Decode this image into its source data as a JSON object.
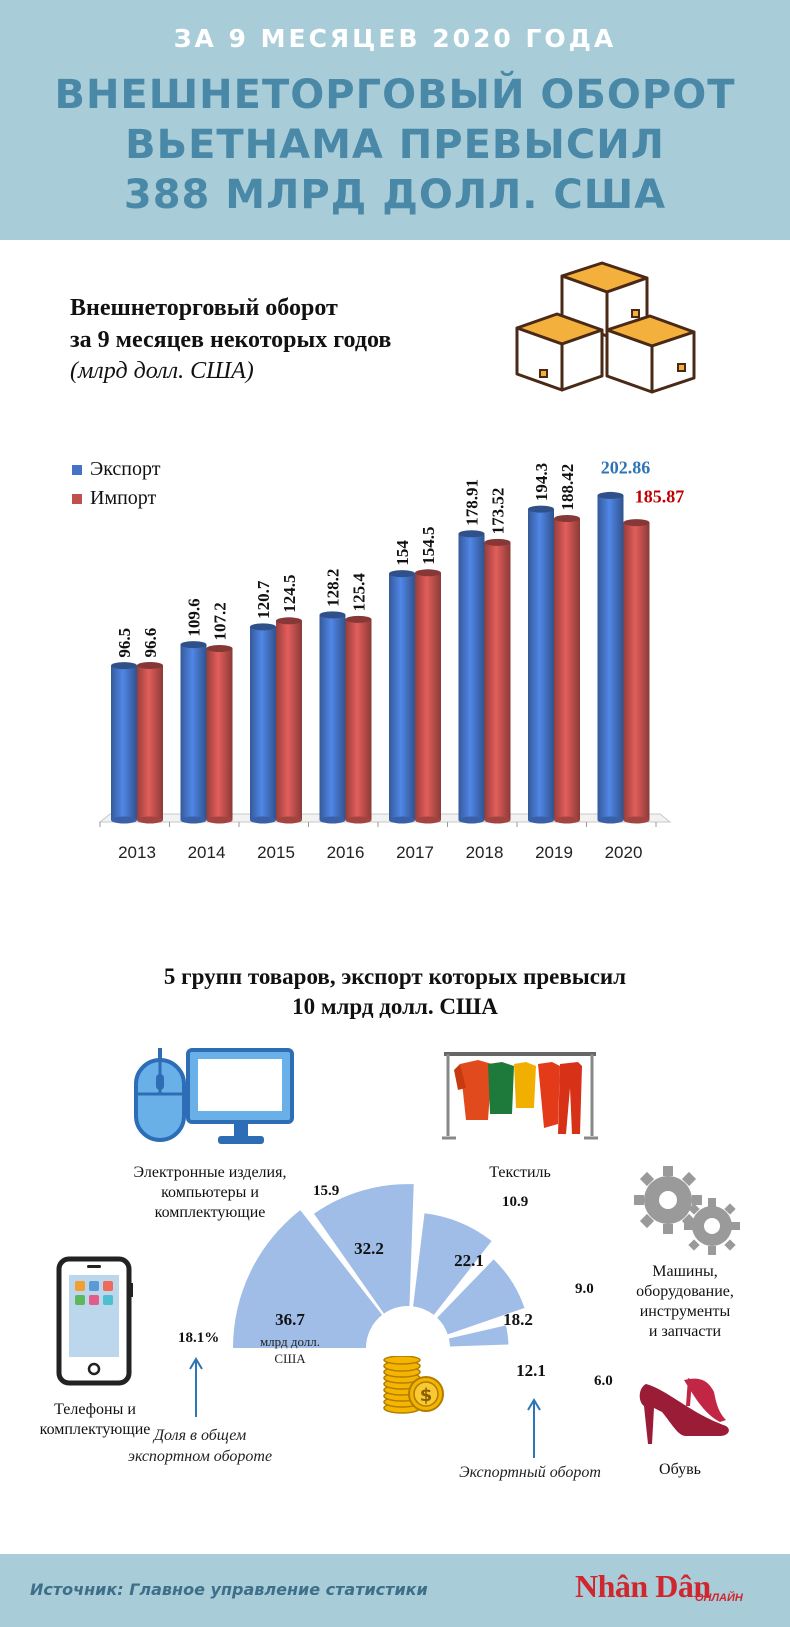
{
  "header": {
    "subtitle": "ЗА 9 МЕСЯЦЕВ 2020 ГОДА",
    "title_lines": [
      "ВНЕШНЕТОРГОВЫЙ ОБОРОТ",
      "ВЬЕТНАМА ПРЕВЫСИЛ",
      "388 МЛРД ДОЛЛ. США"
    ]
  },
  "section1": {
    "title_lines": [
      "Внешнеторговый оборот",
      "за 9 месяцев некоторых годов"
    ],
    "unit": "(млрд долл. США)"
  },
  "chart_data": [
    {
      "type": "bar",
      "categories": [
        "2013",
        "2014",
        "2015",
        "2016",
        "2017",
        "2018",
        "2019",
        "2020"
      ],
      "series": [
        {
          "name": "Экспорт",
          "values": [
            96.5,
            109.6,
            120.7,
            128.2,
            154,
            178.91,
            194.3,
            202.86
          ],
          "color": "#4472c4",
          "labels": [
            "96.5",
            "109.6",
            "120.7",
            "128.2",
            "154",
            "178.91",
            "194.3",
            "202.86"
          ]
        },
        {
          "name": "Импорт",
          "values": [
            96.6,
            107.2,
            124.5,
            125.4,
            154.5,
            173.52,
            188.42,
            185.87
          ],
          "color": "#c0504d",
          "labels": [
            "96.6",
            "107.2",
            "124.5",
            "125.4",
            "154.5",
            "173.52",
            "188.42",
            "185.87"
          ]
        }
      ],
      "highlight_colors": {
        "export": "#2e75b6",
        "import": "#c00000"
      },
      "legend_position": "top-left",
      "grid": false
    },
    {
      "type": "pie",
      "categories": [
        "Телефоны и комплектующие",
        "Электронные изделия, компьютеры и комплектующие",
        "Текстиль",
        "Машины, оборудование, инструменты и запчасти",
        "Обувь"
      ],
      "values": [
        36.7,
        32.2,
        22.1,
        18.2,
        12.1
      ],
      "value_labels": [
        "36.7",
        "32.2",
        "22.1",
        "18.2",
        "12.1"
      ],
      "unit_label": "млрд долл. США",
      "shares": [
        "18.1%",
        "15.9",
        "10.9",
        "9.0",
        "6.0"
      ],
      "color": "#9fbde6"
    }
  ],
  "section2": {
    "title_lines": [
      "5 групп товаров, экспорт которых превысил",
      "10 млрд долл. США"
    ],
    "labels": {
      "electronics": [
        "Электронные изделия,",
        "компьютеры и",
        "комплектующие"
      ],
      "textile": [
        "Текстиль"
      ],
      "machines": [
        "Машины,",
        "оборудование,",
        "инструменты",
        "и запчасти"
      ],
      "phones": [
        "Телефоны и",
        "комплектующие"
      ],
      "shoes": [
        "Обувь"
      ]
    },
    "notes": {
      "share": [
        "Доля в общем",
        "экспортном обороте"
      ],
      "turnover": [
        "Экспортный оборот"
      ]
    }
  },
  "footer": {
    "source": "Источник: Главное управление статистики",
    "logo": "Nhân Dân",
    "logo_small": "ОНЛАЙН"
  }
}
